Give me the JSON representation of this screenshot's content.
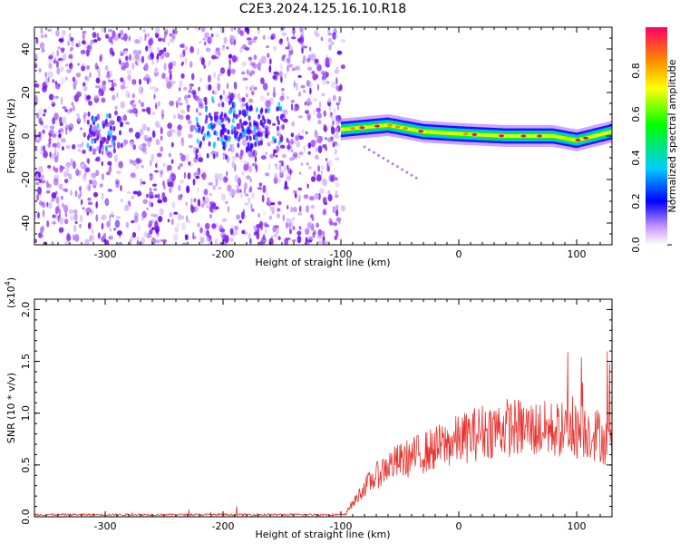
{
  "title": "C2E3.2024.125.16.10.R18",
  "chart_data": [
    {
      "type": "heatmap",
      "xlabel": "Height of straight line (km)",
      "ylabel": "Frequency (Hz)",
      "xlim": [
        -360,
        130
      ],
      "ylim": [
        -50,
        50
      ],
      "xticks": [
        "-300",
        "-200",
        "-100",
        "0",
        "100"
      ],
      "yticks": [
        "-40",
        "-20",
        "0",
        "20",
        "40"
      ],
      "colorbar": {
        "label": "Normalized spectral amplitude",
        "range": [
          0.0,
          1.0
        ],
        "ticks": [
          "0.0",
          "0.2",
          "0.4",
          "0.6",
          "0.8"
        ]
      },
      "features": {
        "noise_region_x": [
          -360,
          -98
        ],
        "signal_band_x": [
          -100,
          130
        ],
        "signal_center_freq_hz": [
          {
            "x": -100,
            "f": 3
          },
          {
            "x": -60,
            "f": 5
          },
          {
            "x": -30,
            "f": 2
          },
          {
            "x": 0,
            "f": 1
          },
          {
            "x": 40,
            "f": 0
          },
          {
            "x": 80,
            "f": 0
          },
          {
            "x": 100,
            "f": -2
          },
          {
            "x": 130,
            "f": 2
          }
        ]
      }
    },
    {
      "type": "line",
      "xlabel": "Height of straight line (km)",
      "ylabel": "SNR (10 * v/v)",
      "yscale_label": "(x10",
      "yscale_exp": "4",
      "yscale_close": ")",
      "xlim": [
        -360,
        130
      ],
      "ylim": [
        0,
        2.1
      ],
      "xticks": [
        "-300",
        "-200",
        "-100",
        "0",
        "100"
      ],
      "yticks": [
        "0.0",
        "0.5",
        "1.0",
        "1.5",
        "2.0"
      ],
      "color": "#e8322e",
      "envelope": {
        "x": [
          -360,
          -120,
          -100,
          -90,
          -80,
          -60,
          -40,
          -20,
          0,
          20,
          40,
          60,
          80,
          100,
          110,
          120,
          130
        ],
        "y": [
          0.02,
          0.02,
          0.03,
          0.15,
          0.35,
          0.6,
          0.7,
          0.8,
          0.9,
          1.0,
          1.05,
          1.03,
          1.02,
          1.0,
          1.0,
          0.95,
          0.8
        ]
      }
    }
  ],
  "colors": {
    "signal_line": "#e8322e",
    "noise_purple": "#8a2be2"
  }
}
